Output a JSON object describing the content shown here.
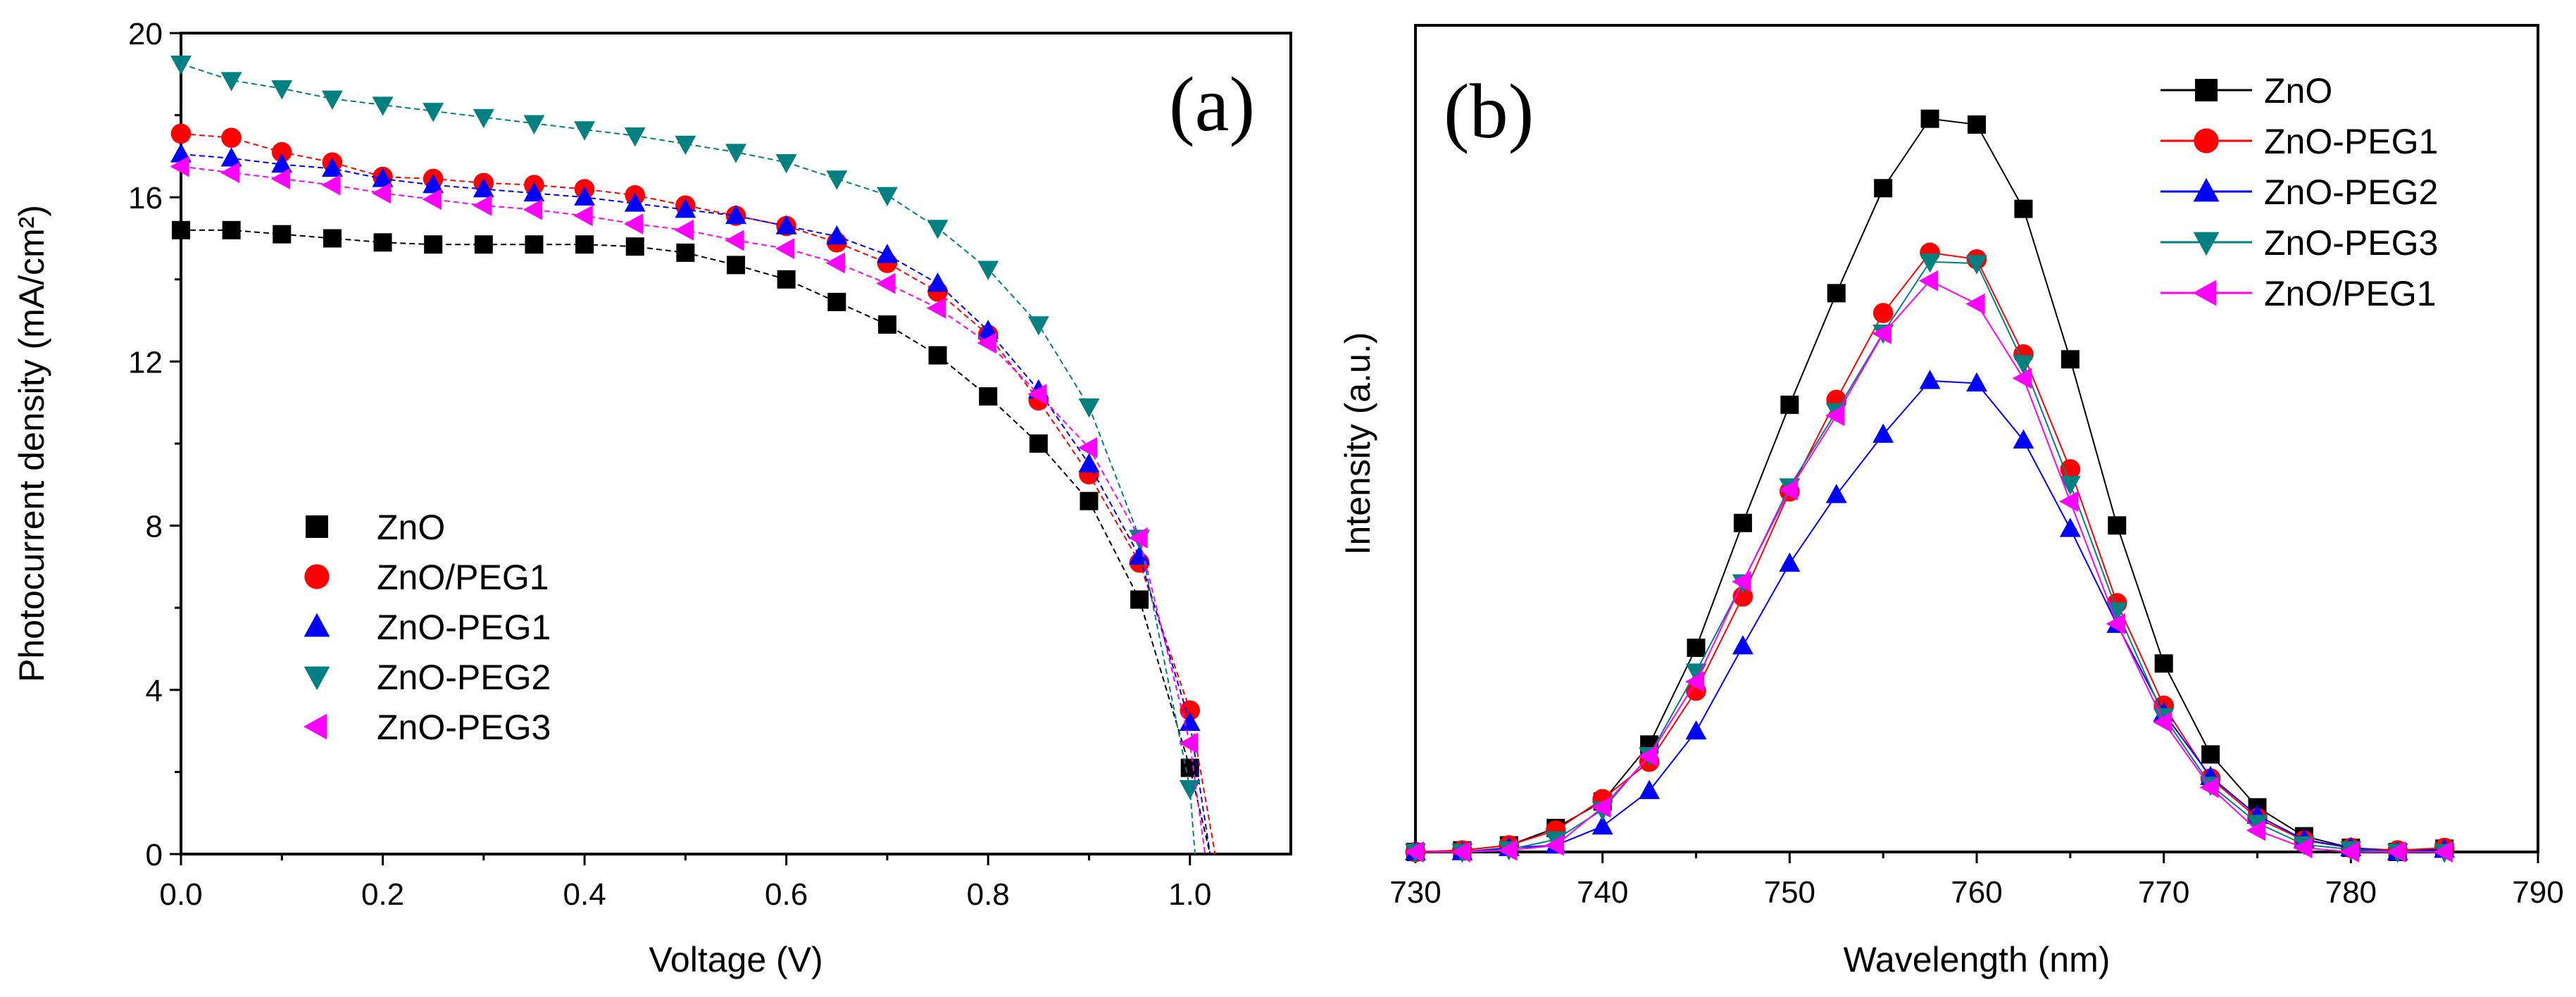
{
  "chart_data": [
    {
      "type": "scatter",
      "panel_label": "(a)",
      "xlabel": "Voltage (V)",
      "ylabel": "Photocurrent density (mA/cm²)",
      "xlim": [
        0,
        1.1
      ],
      "ylim": [
        0,
        20
      ],
      "xticks": [
        "0.0",
        "0.2",
        "0.4",
        "0.6",
        "0.8",
        "1.0"
      ],
      "yticks": [
        "0",
        "4",
        "8",
        "12",
        "16",
        "20"
      ],
      "legend_position": "center-left",
      "x": [
        0,
        0.05,
        0.1,
        0.15,
        0.2,
        0.25,
        0.3,
        0.35,
        0.4,
        0.45,
        0.5,
        0.55,
        0.6,
        0.65,
        0.7,
        0.75,
        0.8,
        0.85,
        0.9,
        0.95,
        1.0
      ],
      "series": [
        {
          "name": "ZnO",
          "marker": "square",
          "color": "#000000",
          "voc": 1.02,
          "values": [
            15.2,
            15.2,
            15.1,
            15.0,
            14.9,
            14.85,
            14.85,
            14.85,
            14.85,
            14.8,
            14.65,
            14.35,
            14.0,
            13.45,
            12.9,
            12.15,
            11.15,
            10.0,
            8.6,
            6.2,
            2.1
          ]
        },
        {
          "name": "ZnO/PEG1",
          "marker": "circle",
          "color": "#ff0000",
          "voc": 1.025,
          "values": [
            17.55,
            17.45,
            17.1,
            16.85,
            16.5,
            16.45,
            16.35,
            16.3,
            16.2,
            16.05,
            15.8,
            15.55,
            15.3,
            14.9,
            14.4,
            13.7,
            12.65,
            11.05,
            9.25,
            7.1,
            3.5
          ]
        },
        {
          "name": "ZnO-PEG1",
          "marker": "triangle-up",
          "color": "#0000ff",
          "voc": 1.02,
          "values": [
            17.05,
            16.95,
            16.8,
            16.7,
            16.45,
            16.3,
            16.2,
            16.1,
            16.0,
            15.85,
            15.7,
            15.55,
            15.3,
            15.05,
            14.6,
            13.9,
            12.75,
            11.3,
            9.5,
            7.25,
            3.2
          ]
        },
        {
          "name": "ZnO-PEG2",
          "marker": "triangle-down",
          "color": "#008080",
          "voc": 1.005,
          "values": [
            19.25,
            18.85,
            18.65,
            18.4,
            18.25,
            18.1,
            17.95,
            17.8,
            17.65,
            17.5,
            17.3,
            17.1,
            16.85,
            16.45,
            16.05,
            15.25,
            14.25,
            12.9,
            10.9,
            7.7,
            1.6
          ]
        },
        {
          "name": "ZnO-PEG3",
          "marker": "triangle-left",
          "color": "#ff00ff",
          "voc": 1.015,
          "values": [
            16.75,
            16.6,
            16.45,
            16.3,
            16.1,
            15.95,
            15.8,
            15.7,
            15.55,
            15.35,
            15.2,
            14.95,
            14.75,
            14.4,
            13.9,
            13.3,
            12.45,
            11.2,
            9.9,
            7.7,
            2.7
          ]
        }
      ]
    },
    {
      "type": "line",
      "panel_label": "(b)",
      "xlabel": "Wavelength (nm)",
      "ylabel": "Intensity (a.u.)",
      "xlim": [
        730,
        790
      ],
      "ylim": [
        0,
        100
      ],
      "xticks": [
        "730",
        "740",
        "750",
        "760",
        "770",
        "780",
        "790"
      ],
      "yticks": [],
      "legend_position": "top-right",
      "x": [
        730,
        732.5,
        735,
        737.5,
        740,
        742.5,
        745,
        747.5,
        750,
        752.5,
        755,
        757.5,
        760,
        762.5,
        765,
        767.5,
        770,
        772.5,
        775,
        777.5,
        780,
        782.5,
        785
      ],
      "series": [
        {
          "name": "ZnO",
          "marker": "square",
          "color": "#000000",
          "values": [
            0,
            0.2,
            0.8,
            2.9,
            6.1,
            13.0,
            24.7,
            39.8,
            54.1,
            67.6,
            80.3,
            88.7,
            88.0,
            77.8,
            59.6,
            39.5,
            22.8,
            11.8,
            5.4,
            1.9,
            0.5,
            0,
            0.4
          ]
        },
        {
          "name": "ZnO-PEG1",
          "marker": "circle",
          "color": "#ff0000",
          "values": [
            0,
            0.2,
            0.8,
            2.6,
            6.4,
            10.9,
            19.5,
            30.9,
            43.6,
            54.7,
            65.2,
            72.5,
            71.7,
            60.2,
            46.3,
            30.1,
            17.7,
            8.9,
            4.1,
            1.4,
            0.5,
            0.2,
            0.5
          ]
        },
        {
          "name": "ZnO-PEG2",
          "marker": "triangle-up",
          "color": "#0000ff",
          "values": [
            0,
            0,
            0.5,
            0.8,
            3.1,
            7.4,
            14.6,
            24.9,
            34.9,
            43.2,
            50.5,
            57.0,
            56.7,
            49.8,
            39.1,
            27.5,
            16.8,
            9.1,
            4.4,
            1.5,
            0.5,
            0,
            0.3
          ]
        },
        {
          "name": "ZnO-PEG3",
          "marker": "triangle-down",
          "color": "#008080",
          "values": [
            0,
            0,
            0.3,
            1.5,
            5.1,
            11.7,
            21.8,
            32.6,
            44.2,
            53.3,
            62.8,
            71.4,
            71.2,
            59.1,
            44.5,
            29.2,
            16.4,
            8.1,
            3.5,
            0.9,
            0.3,
            0,
            0
          ]
        },
        {
          "name": "ZnO/PEG1",
          "marker": "triangle-left",
          "color": "#ff00ff",
          "values": [
            0,
            0,
            0.2,
            0.8,
            5.4,
            11.6,
            20.6,
            32.7,
            43.8,
            52.8,
            62.7,
            69.1,
            66.3,
            57.3,
            42.4,
            27.6,
            15.7,
            7.8,
            2.6,
            0.5,
            0,
            0,
            0
          ]
        }
      ]
    }
  ]
}
